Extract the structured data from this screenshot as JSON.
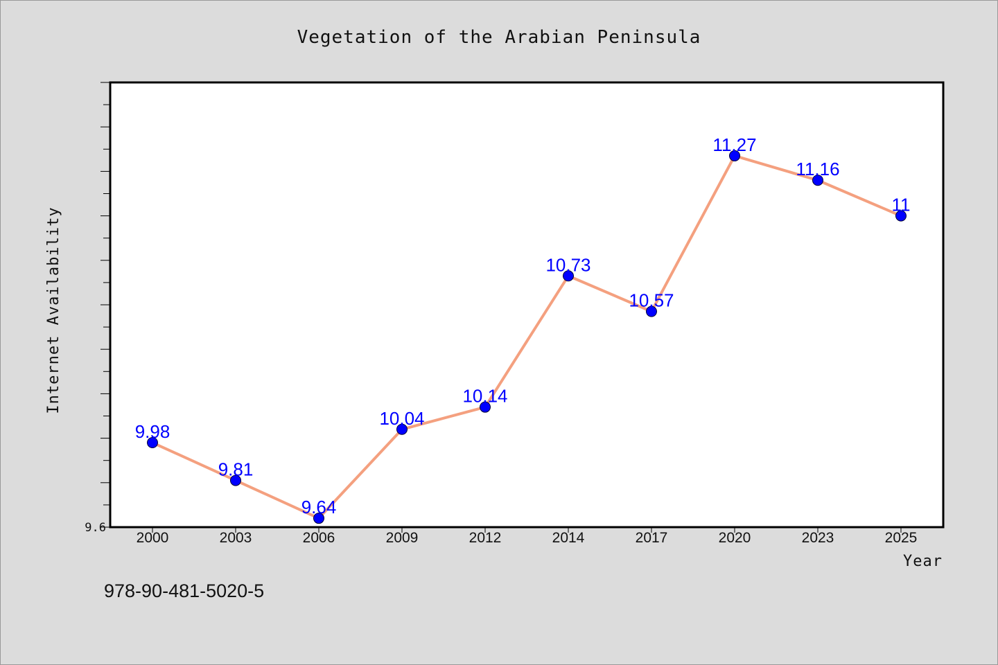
{
  "chart_data": {
    "type": "line",
    "title": "Vegetation of the Arabian Peninsula",
    "xlabel": "Year",
    "ylabel": "Internet Availability",
    "categories": [
      "2000",
      "2003",
      "2006",
      "2009",
      "2012",
      "2014",
      "2017",
      "2020",
      "2023",
      "2025"
    ],
    "series": [
      {
        "values": [
          9.98,
          9.81,
          9.64,
          10.04,
          10.14,
          10.73,
          10.57,
          11.27,
          11.16,
          11
        ]
      }
    ],
    "data_labels": [
      "9.98",
      "9.81",
      "9.64",
      "10.04",
      "10.14",
      "10.73",
      "10.57",
      "11.27",
      "11.16",
      "11"
    ],
    "ylim": [
      9.6,
      11.6
    ],
    "ytick_labels": [
      "9.6"
    ],
    "grid": false,
    "colors": {
      "line": "#f4a07f",
      "marker": "#0000ff",
      "data_label": "#0000ff",
      "background": "#dcdcdc",
      "plot": "#ffffff"
    }
  },
  "footnote": "978-90-481-5020-5"
}
